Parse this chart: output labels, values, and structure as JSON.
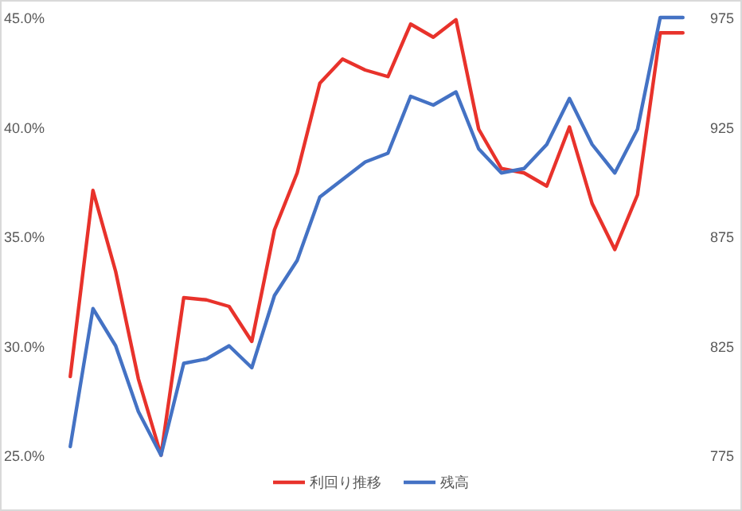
{
  "chart_data": {
    "type": "line",
    "categories": [
      null,
      null,
      null,
      null,
      null,
      null,
      null,
      null,
      null,
      null,
      null,
      null,
      null,
      null,
      null,
      null,
      null,
      null,
      null,
      null,
      null,
      null,
      null,
      null,
      null,
      null,
      null,
      null
    ],
    "series": [
      {
        "name": "利回り推移",
        "color": "#e8322b",
        "values": [
          28.6,
          37.1,
          33.4,
          28.5,
          25.0,
          32.2,
          32.1,
          31.8,
          30.2,
          35.3,
          37.9,
          42.0,
          43.1,
          42.6,
          42.3,
          44.7,
          44.1,
          44.9,
          39.9,
          38.1,
          37.9,
          37.3,
          40.0,
          36.5,
          34.4,
          36.9,
          44.3,
          44.3
        ]
      },
      {
        "name": "残高",
        "color": "#4472c4",
        "axis": "y2",
        "values": [
          779,
          842,
          825,
          795,
          775,
          817,
          819,
          825,
          815,
          848,
          864,
          893,
          901,
          909,
          913,
          939,
          935,
          941,
          915,
          904,
          906,
          917,
          938,
          917,
          904,
          924,
          975,
          975
        ]
      }
    ],
    "ylim": [
      25,
      45
    ],
    "yticks": [
      {
        "value": 25,
        "label": "25.0%"
      },
      {
        "value": 30,
        "label": "30.0%"
      },
      {
        "value": 35,
        "label": "35.0%"
      },
      {
        "value": 40,
        "label": "40.0%"
      },
      {
        "value": 45,
        "label": "45.0%"
      }
    ],
    "y2lim": [
      775,
      975
    ],
    "y2ticks": [
      775,
      825,
      875,
      925,
      975
    ],
    "legend": "bottom",
    "grid": false,
    "marker": "none",
    "line_style": "solid"
  }
}
